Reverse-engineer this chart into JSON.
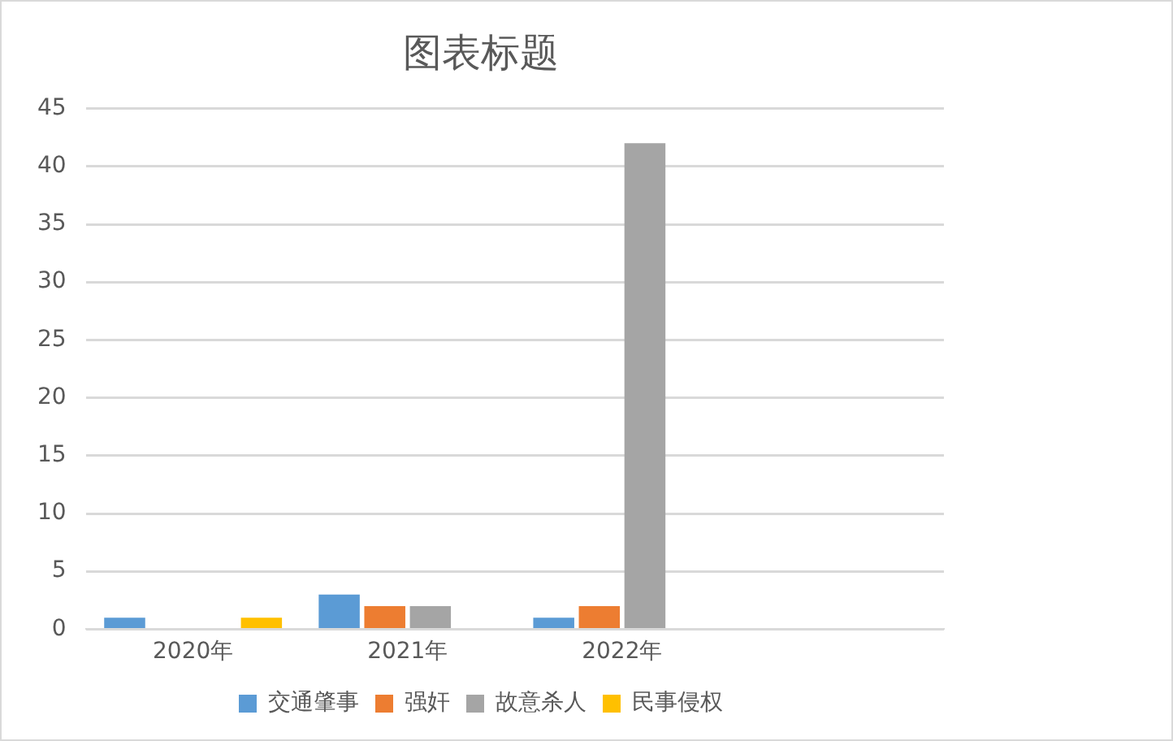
{
  "chart_data": {
    "type": "bar",
    "title": "图表标题",
    "categories": [
      "2020年",
      "2021年",
      "2022年",
      null
    ],
    "series": [
      {
        "name": "交通肇事",
        "color": "#5b9bd5",
        "values": [
          1,
          3,
          1,
          null
        ]
      },
      {
        "name": "强奸",
        "color": "#ed7d31",
        "values": [
          0,
          2,
          2,
          null
        ]
      },
      {
        "name": "故意杀人",
        "color": "#a5a5a5",
        "values": [
          0,
          2,
          42,
          null
        ]
      },
      {
        "name": "民事侵权",
        "color": "#ffc000",
        "values": [
          1,
          0,
          0,
          null
        ]
      }
    ],
    "ylim": [
      0,
      45
    ],
    "yticks": [
      0,
      5,
      10,
      15,
      20,
      25,
      30,
      35,
      40,
      45
    ],
    "grid": "y",
    "legend": "bottom"
  }
}
